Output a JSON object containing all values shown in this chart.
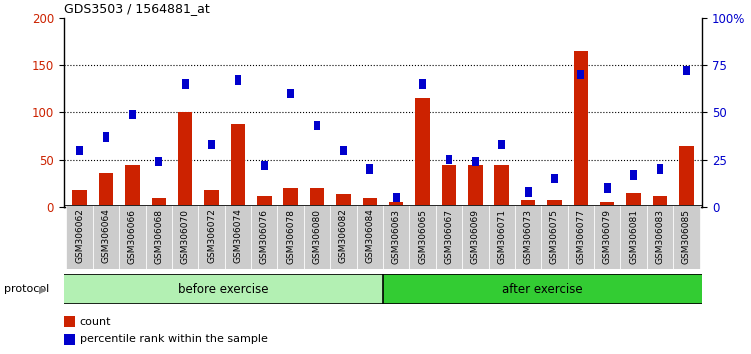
{
  "title": "GDS3503 / 1564881_at",
  "samples": [
    "GSM306062",
    "GSM306064",
    "GSM306066",
    "GSM306068",
    "GSM306070",
    "GSM306072",
    "GSM306074",
    "GSM306076",
    "GSM306078",
    "GSM306080",
    "GSM306082",
    "GSM306084",
    "GSM306063",
    "GSM306065",
    "GSM306067",
    "GSM306069",
    "GSM306071",
    "GSM306073",
    "GSM306075",
    "GSM306077",
    "GSM306079",
    "GSM306081",
    "GSM306083",
    "GSM306085"
  ],
  "count_values": [
    18,
    36,
    44,
    10,
    100,
    18,
    88,
    12,
    20,
    20,
    14,
    10,
    5,
    115,
    44,
    44,
    44,
    7,
    8,
    165,
    5,
    15,
    12,
    65
  ],
  "percentile_values": [
    30,
    37,
    49,
    24,
    65,
    33,
    67,
    22,
    60,
    43,
    30,
    20,
    5,
    65,
    25,
    24,
    33,
    8,
    15,
    70,
    10,
    17,
    20,
    72
  ],
  "before_exercise_count": 12,
  "after_exercise_count": 12,
  "before_color": "#b3f0b3",
  "after_color": "#33cc33",
  "bar_color": "#cc2200",
  "dot_color": "#0000cc",
  "ylim_left": [
    0,
    200
  ],
  "ylim_right": [
    0,
    100
  ],
  "yticks_left": [
    0,
    50,
    100,
    150,
    200
  ],
  "yticks_right": [
    0,
    25,
    50,
    75,
    100
  ],
  "ytick_labels_right": [
    "0",
    "25",
    "50",
    "75",
    "100%"
  ],
  "background_color": "#ffffff",
  "plot_bg_color": "#ffffff",
  "xlabel_bg_color": "#cccccc",
  "protocol_label": "protocol",
  "before_label": "before exercise",
  "after_label": "after exercise",
  "legend_count": "count",
  "legend_percentile": "percentile rank within the sample"
}
